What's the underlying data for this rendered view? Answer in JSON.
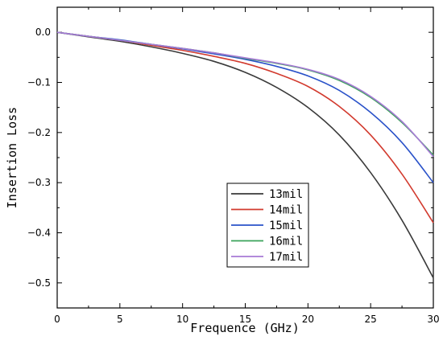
{
  "chart_data": {
    "type": "line",
    "xlabel": "Frequence (GHz)",
    "ylabel": "Insertion Loss",
    "xlim": [
      0,
      30
    ],
    "ylim": [
      -0.55,
      0.05
    ],
    "xticks": [
      0,
      5,
      10,
      15,
      20,
      25,
      30
    ],
    "xtick_labels": [
      "0",
      "5",
      "10",
      "15",
      "20",
      "25",
      "30"
    ],
    "yticks": [
      0.0,
      -0.1,
      -0.2,
      -0.3,
      -0.4,
      -0.5
    ],
    "ytick_labels": [
      "0.0",
      "−0.1",
      "−0.2",
      "−0.3",
      "−0.4",
      "−0.5"
    ],
    "grid": false,
    "legend_position": "lower-center",
    "x": [
      0,
      2.5,
      5,
      7.5,
      10,
      12.5,
      15,
      17.5,
      20,
      22.5,
      25,
      27.5,
      30
    ],
    "series": [
      {
        "name": "13mil",
        "color": "#3a3a3a",
        "values": [
          0,
          -0.009,
          -0.018,
          -0.029,
          -0.042,
          -0.058,
          -0.08,
          -0.11,
          -0.15,
          -0.205,
          -0.28,
          -0.375,
          -0.49
        ]
      },
      {
        "name": "14mil",
        "color": "#d23a2e",
        "values": [
          0,
          -0.008,
          -0.016,
          -0.026,
          -0.036,
          -0.048,
          -0.062,
          -0.082,
          -0.108,
          -0.148,
          -0.205,
          -0.283,
          -0.38
        ]
      },
      {
        "name": "15mil",
        "color": "#2a52c9",
        "values": [
          0,
          -0.008,
          -0.015,
          -0.024,
          -0.033,
          -0.043,
          -0.054,
          -0.068,
          -0.087,
          -0.116,
          -0.16,
          -0.22,
          -0.3
        ]
      },
      {
        "name": "16mil",
        "color": "#3aa35a",
        "values": [
          0,
          -0.008,
          -0.016,
          -0.024,
          -0.032,
          -0.041,
          -0.052,
          -0.062,
          -0.075,
          -0.096,
          -0.13,
          -0.18,
          -0.245
        ]
      },
      {
        "name": "17mil",
        "color": "#a77ad6",
        "values": [
          0,
          -0.008,
          -0.016,
          -0.024,
          -0.032,
          -0.041,
          -0.051,
          -0.061,
          -0.074,
          -0.094,
          -0.128,
          -0.178,
          -0.248
        ]
      }
    ]
  }
}
